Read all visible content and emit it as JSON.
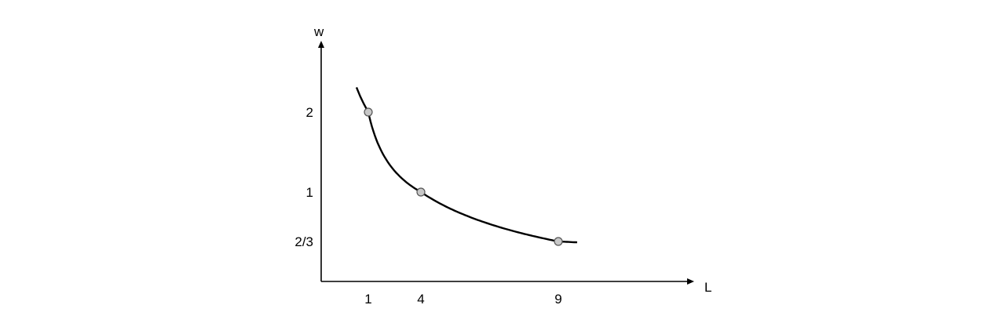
{
  "chart_data": {
    "type": "line",
    "xlabel": "L",
    "ylabel": "w",
    "x_ticks": [
      {
        "value": 1,
        "label": "1"
      },
      {
        "value": 4,
        "label": "4"
      },
      {
        "value": 9,
        "label": "9"
      }
    ],
    "y_ticks": [
      {
        "value": 2,
        "label": "2"
      },
      {
        "value": 1,
        "label": "1"
      },
      {
        "value": 0.6667,
        "label": "2/3"
      }
    ],
    "series": [
      {
        "curve": "w = 2 / sqrt(L)",
        "x_range": [
          0.75,
          10
        ],
        "points": [
          {
            "x": 1,
            "y": 2
          },
          {
            "x": 4,
            "y": 1
          },
          {
            "x": 9,
            "y": 0.6667
          }
        ]
      }
    ],
    "grid": false,
    "colors": {
      "axis": "#000000",
      "curve": "#000000",
      "point_fill": "#c8c8c8",
      "point_stroke": "#555555"
    }
  }
}
